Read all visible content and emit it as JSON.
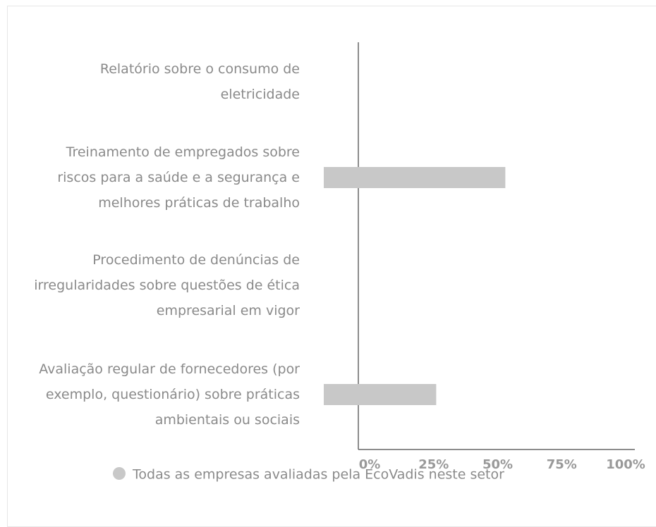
{
  "chart_data": {
    "type": "hbar",
    "categories": [
      "Relatório sobre o consumo de eletricidade",
      "Treinamento de empregados sobre riscos para a saúde e a segurança e melhores práticas de trabalho",
      "Procedimento de denúncias de irregularidades sobre questões de ética empresarial em vigor",
      "Avaliação regular de fornecedores (por exemplo, questionário) sobre práticas ambientais ou sociais"
    ],
    "series": [
      {
        "name": "Todas as empresas avaliadas pela EcoVadis neste setor",
        "color": "#c8c8c8",
        "values": [
          null,
          53,
          null,
          26
        ]
      }
    ],
    "xlim": [
      0,
      100
    ],
    "xticks": [
      {
        "value": 0,
        "label": "0%"
      },
      {
        "value": 25,
        "label": "25%"
      },
      {
        "value": 50,
        "label": "50%"
      },
      {
        "value": 75,
        "label": "75%"
      },
      {
        "value": 100,
        "label": "100%"
      }
    ]
  }
}
